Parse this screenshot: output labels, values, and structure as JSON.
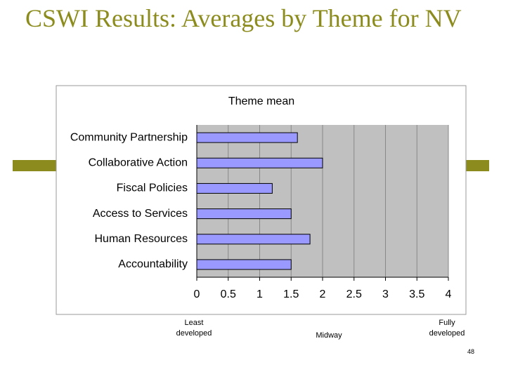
{
  "slide_title": "CSWI Results: Averages by Theme for NV",
  "chart_data": {
    "type": "bar",
    "orientation": "horizontal",
    "title": "Theme mean",
    "categories": [
      "Community Partnership",
      "Collaborative Action",
      "Fiscal Policies",
      "Access to Services",
      "Human Resources",
      "Accountability"
    ],
    "values": [
      1.6,
      2.0,
      1.2,
      1.5,
      1.8,
      1.5
    ],
    "color": "#9999ff",
    "xlim": [
      0,
      4
    ],
    "xticks": [
      0,
      0.5,
      1,
      1.5,
      2,
      2.5,
      3,
      3.5,
      4
    ],
    "grid": true
  },
  "annotations": [
    "Least developed",
    "Midway",
    "Fully developed"
  ],
  "page_number": "48"
}
